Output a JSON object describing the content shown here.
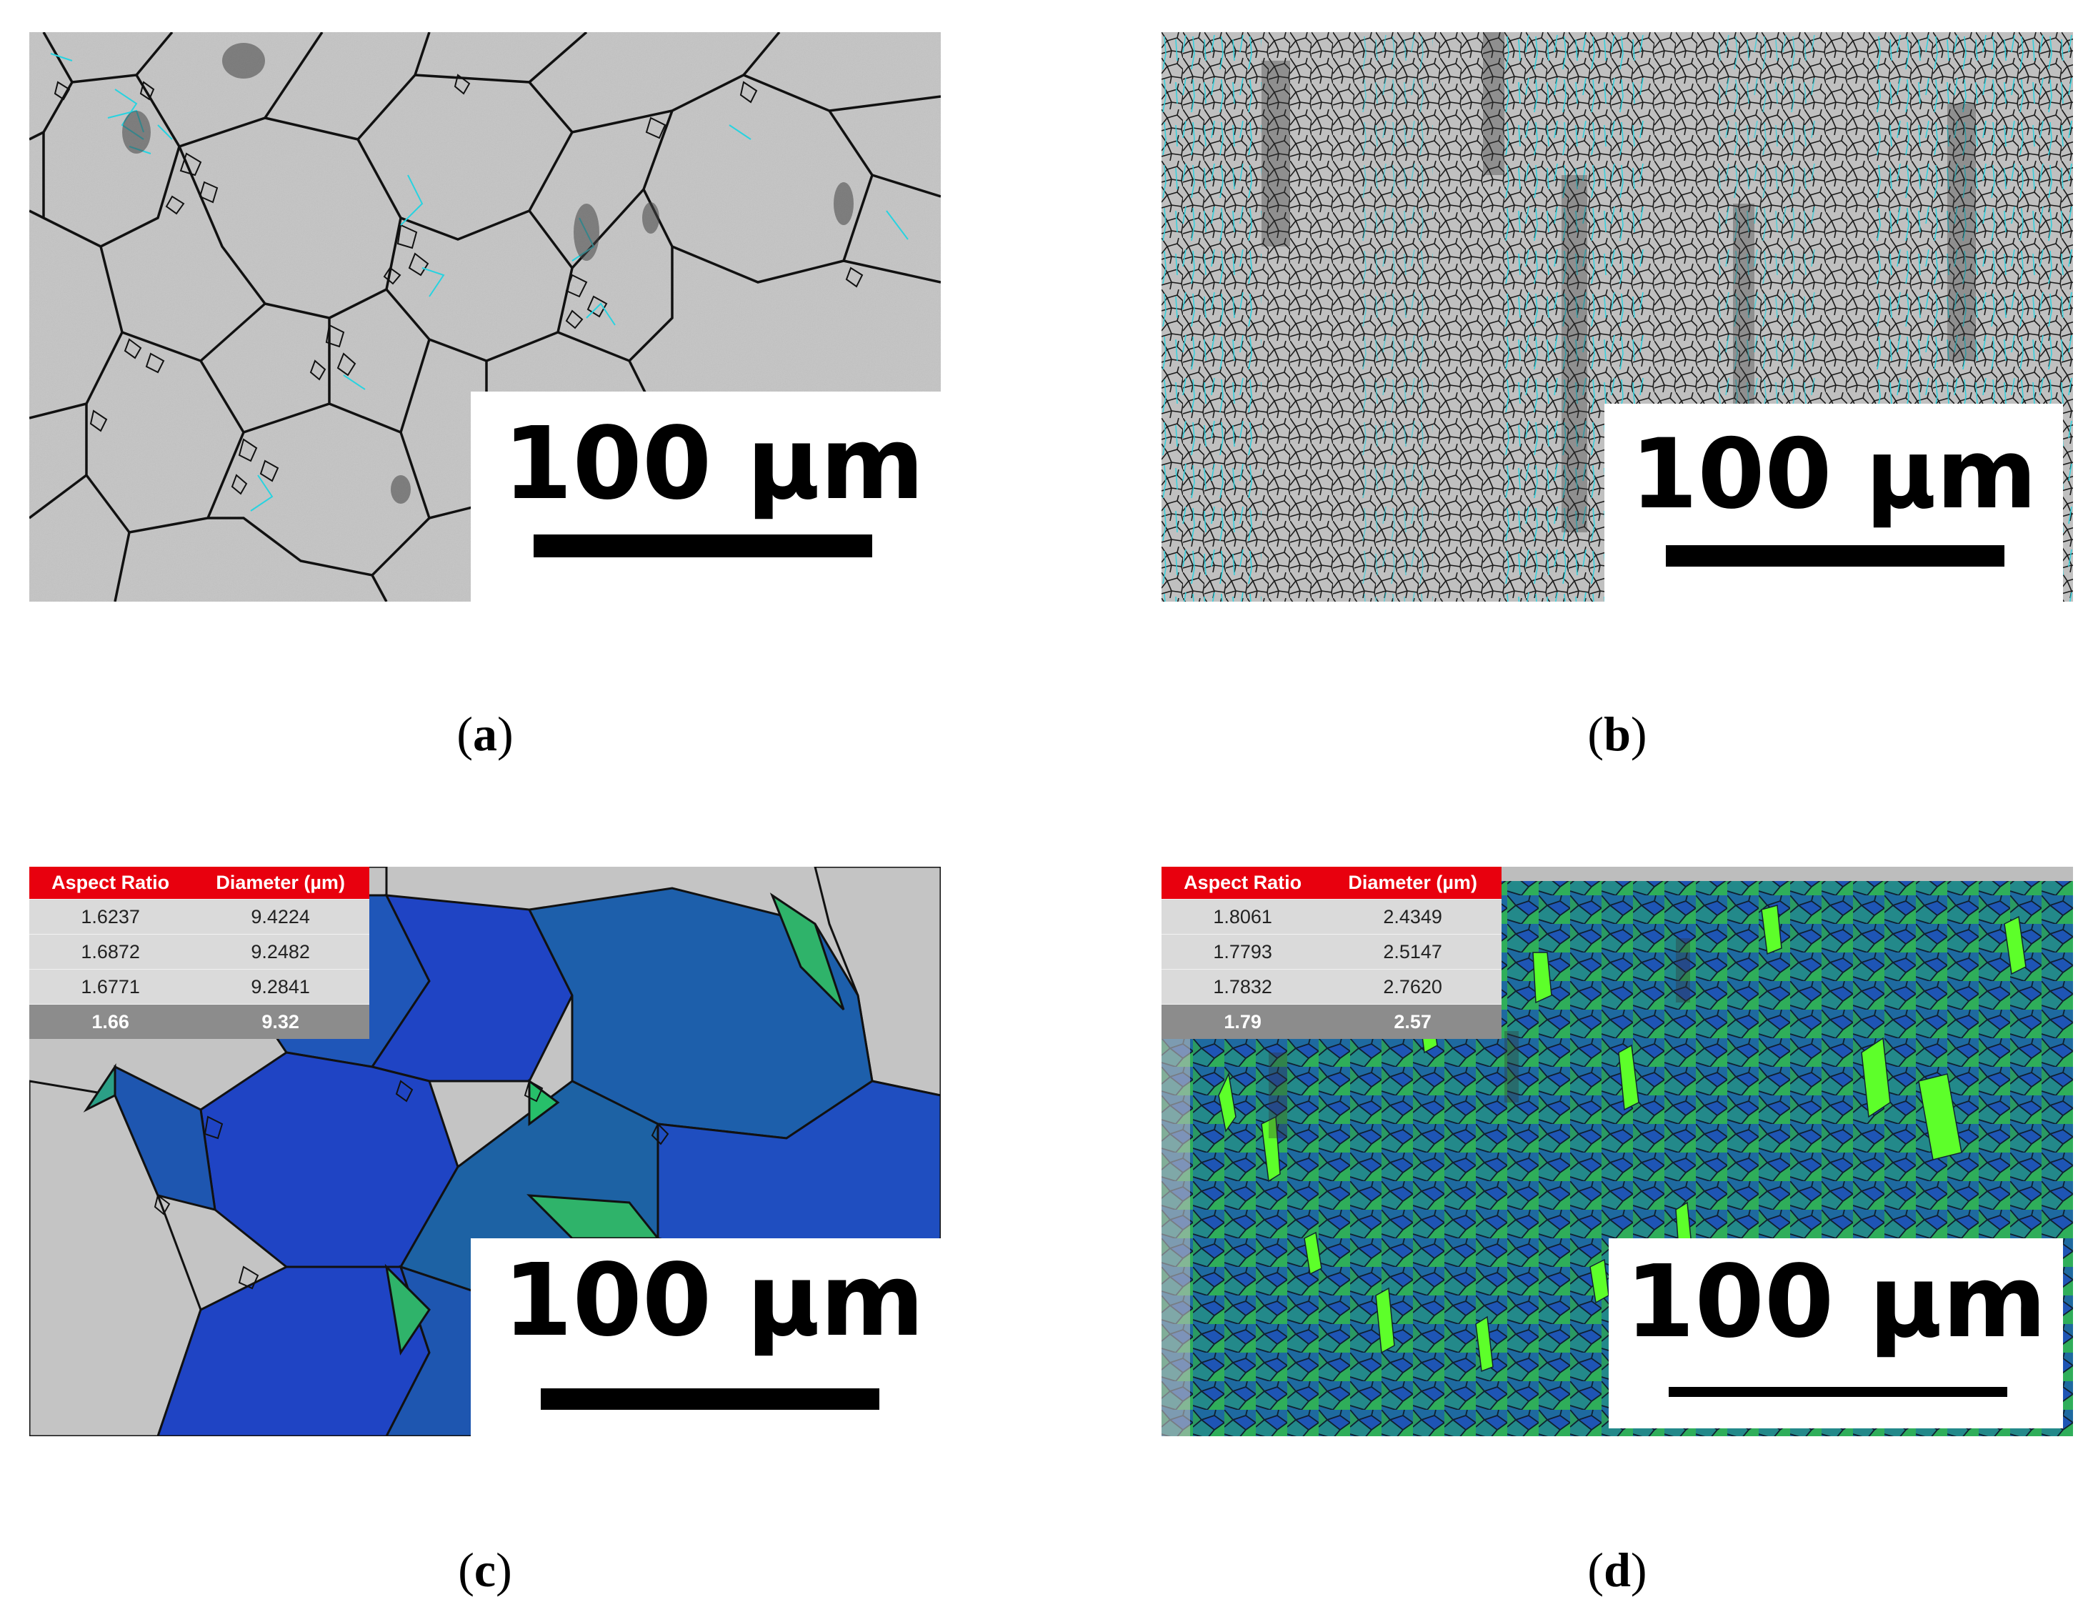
{
  "panels": {
    "a": {
      "caption_label": "a",
      "scale_bar_text": "100 µm"
    },
    "b": {
      "caption_label": "b",
      "scale_bar_text": "100 µm"
    },
    "c": {
      "caption_label": "c",
      "scale_bar_text": "100 µm",
      "table": {
        "headers": [
          "Aspect Ratio",
          "Diameter (µm)"
        ],
        "rows": [
          [
            "1.6237",
            "9.4224"
          ],
          [
            "1.6872",
            "9.2482"
          ],
          [
            "1.6771",
            "9.2841"
          ]
        ],
        "summary": [
          "1.66",
          "9.32"
        ]
      }
    },
    "d": {
      "caption_label": "d",
      "scale_bar_text": "100 µm",
      "table": {
        "headers": [
          "Aspect Ratio",
          "Diameter (µm)"
        ],
        "rows": [
          [
            "1.8061",
            "2.4349"
          ],
          [
            "1.7793",
            "2.5147"
          ],
          [
            "1.7832",
            "2.7620"
          ]
        ],
        "summary": [
          "1.79",
          "2.57"
        ]
      }
    }
  },
  "colors": {
    "sem_gray": "#c4c4c4",
    "grain_boundary": "#111111",
    "twin_boundary": "#27d3e0",
    "grain_blue": "#1f44c4",
    "grain_teal": "#1d6e95",
    "grain_green": "#2fb36a",
    "grain_lime": "#5dff2a",
    "table_header": "#e8000e",
    "table_body": "#dadada",
    "table_summary": "#8c8c8c"
  }
}
